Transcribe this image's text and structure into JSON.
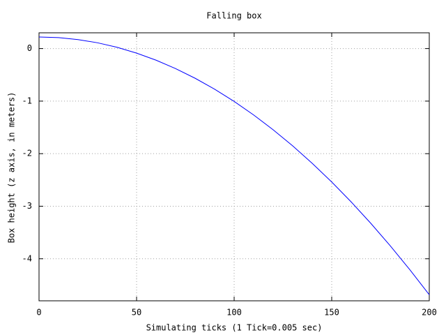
{
  "chart_data": {
    "type": "line",
    "title": "Falling box",
    "x_label": "Simulating ticks (1 Tick=0.005 sec)",
    "y_label": "Box height (z axis, in meters)",
    "x": [
      0,
      10,
      20,
      30,
      40,
      50,
      60,
      70,
      80,
      90,
      100,
      110,
      120,
      130,
      140,
      150,
      160,
      170,
      180,
      190,
      200
    ],
    "series": [
      {
        "color": "#0000ff",
        "values": [
          0.22,
          0.208,
          0.171,
          0.11,
          0.024,
          -0.087,
          -0.221,
          -0.381,
          -0.565,
          -0.773,
          -1.006,
          -1.264,
          -1.546,
          -1.852,
          -2.183,
          -2.539,
          -2.919,
          -3.324,
          -3.753,
          -4.207,
          -4.685
        ]
      }
    ],
    "xlim": [
      0,
      200
    ],
    "xticks": [
      0,
      50,
      100,
      150,
      200
    ],
    "ylim": [
      -4.8,
      0.3
    ],
    "yticks": [
      -4,
      -3,
      -2,
      -1,
      0
    ],
    "grid": true
  }
}
